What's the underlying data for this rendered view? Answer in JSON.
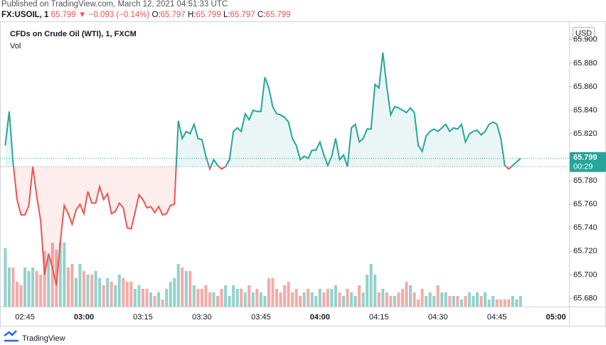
{
  "header": {
    "published": "Published on TradingView.com, March 12, 2021 04:51:33 UTC",
    "symbol": "FX:USOIL, 1",
    "last": "65.799",
    "arrow": "▼",
    "change": "−0.093 (−0.14%)",
    "ohlc": [
      {
        "label": "O:",
        "value": "65.797"
      },
      {
        "label": "H:",
        "value": "65.799"
      },
      {
        "label": "L:",
        "value": "65.797"
      },
      {
        "label": "C:",
        "value": "65.799"
      }
    ]
  },
  "footer": {
    "brand": "TradingView"
  },
  "chart_data": {
    "type": "baseline",
    "title": "CFDs on Crude Oil (WTI), 1, FXCM",
    "currency": "USD",
    "countdown": "00:29",
    "categories": [
      null,
      null,
      null,
      null,
      null,
      "02:45",
      null,
      null,
      null,
      null,
      null,
      null,
      null,
      null,
      null,
      null,
      null,
      null,
      null,
      null,
      "03:00",
      null,
      null,
      null,
      null,
      null,
      null,
      null,
      null,
      null,
      null,
      null,
      null,
      null,
      null,
      "03:15",
      null,
      null,
      null,
      null,
      null,
      null,
      null,
      null,
      null,
      null,
      null,
      null,
      null,
      null,
      "03:30",
      null,
      null,
      null,
      null,
      null,
      null,
      null,
      null,
      null,
      null,
      null,
      null,
      null,
      null,
      "03:45",
      null,
      null,
      null,
      null,
      null,
      null,
      null,
      null,
      null,
      null,
      null,
      null,
      null,
      null,
      "04:00",
      null,
      null,
      null,
      null,
      null,
      null,
      null,
      null,
      null,
      null,
      null,
      null,
      null,
      null,
      "04:15",
      null,
      null,
      null,
      null,
      null,
      null,
      null,
      null,
      null,
      null,
      null,
      null,
      null,
      null,
      "04:30",
      null,
      null,
      null,
      null,
      null,
      null,
      null,
      null,
      null,
      null,
      null,
      null,
      null,
      null,
      "04:45",
      null,
      null,
      null,
      null,
      null,
      null,
      null,
      null,
      null,
      null,
      null,
      null,
      null,
      null,
      "05:00"
    ],
    "values": [
      65.81,
      65.839,
      65.795,
      65.764,
      65.751,
      65.751,
      65.759,
      65.792,
      65.767,
      65.746,
      65.7,
      65.718,
      65.706,
      65.691,
      65.728,
      65.759,
      65.752,
      65.743,
      65.755,
      65.76,
      65.752,
      65.771,
      65.761,
      65.761,
      65.775,
      65.764,
      65.769,
      65.752,
      65.754,
      65.761,
      65.757,
      65.74,
      65.739,
      65.753,
      65.768,
      65.764,
      65.757,
      65.758,
      65.753,
      65.758,
      65.751,
      65.752,
      65.759,
      65.76,
      65.831,
      65.816,
      65.822,
      65.82,
      65.828,
      65.816,
      65.815,
      65.801,
      65.79,
      65.798,
      65.793,
      65.79,
      65.792,
      65.798,
      65.822,
      65.825,
      65.822,
      65.837,
      65.832,
      65.84,
      65.839,
      65.839,
      65.868,
      65.859,
      65.843,
      65.837,
      65.836,
      65.834,
      65.83,
      65.816,
      65.81,
      65.798,
      65.801,
      65.799,
      65.806,
      65.806,
      65.813,
      65.802,
      65.793,
      65.801,
      65.816,
      65.798,
      65.802,
      65.792,
      65.825,
      65.828,
      65.813,
      65.816,
      65.824,
      65.824,
      65.862,
      65.859,
      65.889,
      65.86,
      65.836,
      65.843,
      65.842,
      65.84,
      65.838,
      65.842,
      65.838,
      65.81,
      65.805,
      65.818,
      65.822,
      65.824,
      65.822,
      65.825,
      65.828,
      65.822,
      65.825,
      65.824,
      65.828,
      65.813,
      65.82,
      65.822,
      65.823,
      65.819,
      65.822,
      65.828,
      65.83,
      65.828,
      65.816,
      65.793,
      65.79,
      65.793,
      65.796,
      65.799,
      null,
      null,
      null,
      null,
      null,
      null,
      null,
      null,
      null
    ],
    "baseline": 65.792,
    "up_color": "#26a69a",
    "down_color": "#ef5350",
    "ylim": [
      65.673,
      65.915
    ],
    "yticks": [
      {
        "value": 65.68,
        "label": "65.680"
      },
      {
        "value": 65.7,
        "label": "65.700"
      },
      {
        "value": 65.72,
        "label": "65.720"
      },
      {
        "value": 65.74,
        "label": "65.740"
      },
      {
        "value": 65.76,
        "label": "65.760"
      },
      {
        "value": 65.78,
        "label": "65.780"
      },
      {
        "value": 65.8,
        "label": "65.800"
      },
      {
        "value": 65.82,
        "label": "65.820"
      },
      {
        "value": 65.84,
        "label": "65.840"
      },
      {
        "value": 65.86,
        "label": "65.860"
      },
      {
        "value": 65.88,
        "label": "65.880"
      },
      {
        "value": 65.9,
        "label": "65.900"
      }
    ],
    "grid": false,
    "volume": {
      "name": "Vol",
      "ylim": [
        0,
        100
      ],
      "values": [
        82,
        55,
        55,
        35,
        30,
        55,
        50,
        55,
        50,
        45,
        78,
        70,
        90,
        80,
        90,
        90,
        55,
        60,
        40,
        60,
        50,
        45,
        45,
        50,
        40,
        30,
        40,
        35,
        30,
        45,
        40,
        35,
        35,
        25,
        30,
        25,
        25,
        20,
        15,
        20,
        10,
        25,
        35,
        40,
        60,
        55,
        50,
        50,
        30,
        25,
        25,
        30,
        20,
        20,
        15,
        25,
        30,
        15,
        30,
        25,
        25,
        20,
        30,
        20,
        25,
        20,
        15,
        40,
        40,
        25,
        20,
        30,
        35,
        20,
        25,
        15,
        20,
        25,
        20,
        15,
        25,
        20,
        25,
        25,
        30,
        20,
        15,
        25,
        20,
        15,
        30,
        20,
        45,
        60,
        45,
        20,
        25,
        20,
        15,
        15,
        20,
        25,
        35,
        30,
        20,
        10,
        25,
        15,
        20,
        15,
        30,
        20,
        20,
        15,
        15,
        15,
        10,
        15,
        20,
        15,
        20,
        15,
        20,
        10,
        15,
        10,
        10,
        10,
        10,
        15,
        10,
        15,
        null,
        null,
        null,
        null,
        null,
        null,
        null,
        null,
        null
      ]
    }
  }
}
